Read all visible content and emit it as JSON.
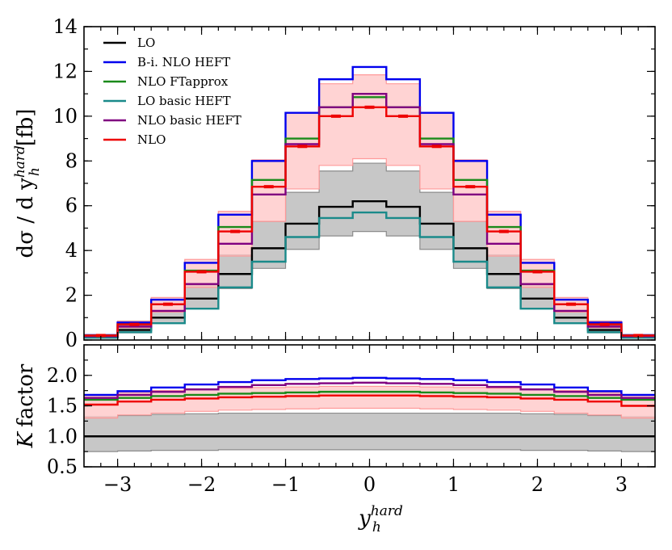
{
  "chart_data": [
    {
      "type": "line",
      "panel": "main",
      "step": true,
      "bin_edges": [
        -3.4,
        -3.0,
        -2.6,
        -2.2,
        -1.8,
        -1.4,
        -1.0,
        -0.6,
        -0.2,
        0.2,
        0.6,
        1.0,
        1.4,
        1.8,
        2.2,
        2.6,
        3.0,
        3.4
      ],
      "ylabel_parts": {
        "main": "dσ / d y",
        "sub": "h",
        "sup": "hard",
        "unit": "[fb]"
      },
      "ylim": [
        0,
        14
      ],
      "yticks": [
        0,
        2,
        4,
        6,
        8,
        10,
        12,
        14
      ],
      "legend_position": "top-left",
      "series": [
        {
          "name": "LO",
          "color": "#000000",
          "values": [
            0.12,
            0.45,
            1.0,
            1.85,
            2.95,
            4.1,
            5.2,
            5.95,
            6.2,
            5.95,
            5.2,
            4.1,
            2.95,
            1.85,
            1.0,
            0.45,
            0.12
          ],
          "band": {
            "color": "#b4b4b4",
            "edge": "#8c8c8c",
            "lower": [
              0.08,
              0.32,
              0.75,
              1.4,
              2.3,
              3.2,
              4.05,
              4.65,
              4.85,
              4.65,
              4.05,
              3.2,
              2.3,
              1.4,
              0.75,
              0.32,
              0.08
            ],
            "upper": [
              0.17,
              0.6,
              1.3,
              2.45,
              3.8,
              5.3,
              6.6,
              7.55,
              7.9,
              7.55,
              6.6,
              5.3,
              3.8,
              2.45,
              1.3,
              0.6,
              0.17
            ]
          }
        },
        {
          "name": "B-i. NLO HEFT",
          "color": "#0000ee",
          "values": [
            0.22,
            0.78,
            1.8,
            3.45,
            5.6,
            8.0,
            10.15,
            11.65,
            12.2,
            11.65,
            10.15,
            8.0,
            5.6,
            3.45,
            1.8,
            0.78,
            0.22
          ]
        },
        {
          "name": "NLO FTapprox",
          "color": "#1a8a1a",
          "values": [
            0.2,
            0.7,
            1.6,
            3.1,
            5.05,
            7.15,
            9.0,
            10.4,
            10.85,
            10.4,
            9.0,
            7.15,
            5.05,
            3.1,
            1.6,
            0.7,
            0.2
          ]
        },
        {
          "name": "LO basic HEFT",
          "color": "#1a8a8a",
          "values": [
            0.1,
            0.35,
            0.75,
            1.4,
            2.35,
            3.5,
            4.6,
            5.45,
            5.7,
            5.45,
            4.6,
            3.5,
            2.35,
            1.4,
            0.75,
            0.35,
            0.1
          ]
        },
        {
          "name": "NLO basic HEFT",
          "color": "#800080",
          "values": [
            0.17,
            0.6,
            1.3,
            2.5,
            4.3,
            6.5,
            8.75,
            10.4,
            11.0,
            10.4,
            8.75,
            6.5,
            4.3,
            2.5,
            1.3,
            0.6,
            0.17
          ]
        },
        {
          "name": "NLO",
          "color": "#ee0000",
          "values": [
            0.2,
            0.7,
            1.6,
            3.05,
            4.85,
            6.85,
            8.65,
            10.0,
            10.4,
            10.0,
            8.65,
            6.85,
            4.85,
            3.05,
            1.6,
            0.7,
            0.2
          ],
          "band": {
            "color": "#ffc4c4",
            "edge": "#ff9a9a",
            "lower": [
              0.15,
              0.55,
              1.25,
              2.35,
              3.75,
              5.3,
              6.75,
              7.8,
              8.1,
              7.8,
              6.75,
              5.3,
              3.75,
              2.35,
              1.25,
              0.55,
              0.15
            ],
            "upper": [
              0.24,
              0.85,
              1.9,
              3.6,
              5.75,
              8.05,
              10.15,
              11.45,
              11.85,
              11.45,
              10.15,
              8.05,
              5.75,
              3.6,
              1.9,
              0.85,
              0.24
            ]
          }
        }
      ]
    },
    {
      "type": "line",
      "panel": "ratio",
      "step": true,
      "bin_edges": [
        -3.4,
        -3.0,
        -2.6,
        -2.2,
        -1.8,
        -1.4,
        -1.0,
        -0.6,
        -0.2,
        0.2,
        0.6,
        1.0,
        1.4,
        1.8,
        2.2,
        2.6,
        3.0,
        3.4
      ],
      "xlabel_parts": {
        "main": "y",
        "sub": "h",
        "sup": "hard"
      },
      "ylabel_parts": {
        "main": "K",
        "rest": "factor"
      },
      "ylim": [
        0.5,
        2.5
      ],
      "yticks": [
        0.5,
        1.0,
        1.5,
        2.0
      ],
      "xlim": [
        -3.4,
        3.4
      ],
      "xticks": [
        -3,
        -2,
        -1,
        0,
        1,
        2,
        3
      ],
      "xtick_labels": [
        "−3",
        "−2",
        "−1",
        "0",
        "1",
        "2",
        "3"
      ],
      "series": [
        {
          "name": "LO",
          "color": "#000000",
          "values": [
            1.0,
            1.0,
            1.0,
            1.0,
            1.0,
            1.0,
            1.0,
            1.0,
            1.0,
            1.0,
            1.0,
            1.0,
            1.0,
            1.0,
            1.0,
            1.0,
            1.0
          ],
          "band": {
            "color": "#b4b4b4",
            "edge": "#8c8c8c",
            "lower": [
              0.75,
              0.76,
              0.77,
              0.77,
              0.78,
              0.78,
              0.78,
              0.78,
              0.78,
              0.78,
              0.78,
              0.78,
              0.78,
              0.77,
              0.77,
              0.76,
              0.75
            ],
            "upper": [
              1.32,
              1.34,
              1.36,
              1.37,
              1.38,
              1.38,
              1.38,
              1.38,
              1.38,
              1.38,
              1.38,
              1.38,
              1.38,
              1.37,
              1.36,
              1.34,
              1.32
            ]
          }
        },
        {
          "name": "B-i. NLO HEFT",
          "color": "#0000ee",
          "values": [
            1.68,
            1.74,
            1.8,
            1.85,
            1.89,
            1.92,
            1.94,
            1.95,
            1.96,
            1.95,
            1.94,
            1.92,
            1.89,
            1.85,
            1.8,
            1.74,
            1.68
          ]
        },
        {
          "name": "NLO FTapprox",
          "color": "#1a8a1a",
          "values": [
            1.6,
            1.63,
            1.66,
            1.68,
            1.7,
            1.71,
            1.72,
            1.73,
            1.73,
            1.73,
            1.72,
            1.71,
            1.7,
            1.68,
            1.66,
            1.63,
            1.6
          ]
        },
        {
          "name": "NLO basic HEFT",
          "color": "#800080",
          "values": [
            1.63,
            1.68,
            1.73,
            1.77,
            1.81,
            1.84,
            1.86,
            1.87,
            1.88,
            1.87,
            1.86,
            1.84,
            1.81,
            1.77,
            1.73,
            1.68,
            1.63
          ]
        },
        {
          "name": "NLO",
          "color": "#ee0000",
          "values": [
            1.52,
            1.57,
            1.6,
            1.62,
            1.64,
            1.65,
            1.66,
            1.67,
            1.67,
            1.67,
            1.66,
            1.65,
            1.64,
            1.62,
            1.6,
            1.57,
            1.5
          ],
          "band": {
            "color": "#ffc4c4",
            "edge": "#ff9a9a",
            "lower": [
              1.3,
              1.35,
              1.38,
              1.41,
              1.43,
              1.44,
              1.45,
              1.46,
              1.46,
              1.46,
              1.45,
              1.44,
              1.43,
              1.41,
              1.38,
              1.35,
              1.3
            ],
            "upper": [
              1.67,
              1.72,
              1.75,
              1.77,
              1.79,
              1.8,
              1.81,
              1.82,
              1.82,
              1.82,
              1.81,
              1.8,
              1.79,
              1.77,
              1.75,
              1.72,
              1.67
            ]
          }
        }
      ]
    }
  ]
}
